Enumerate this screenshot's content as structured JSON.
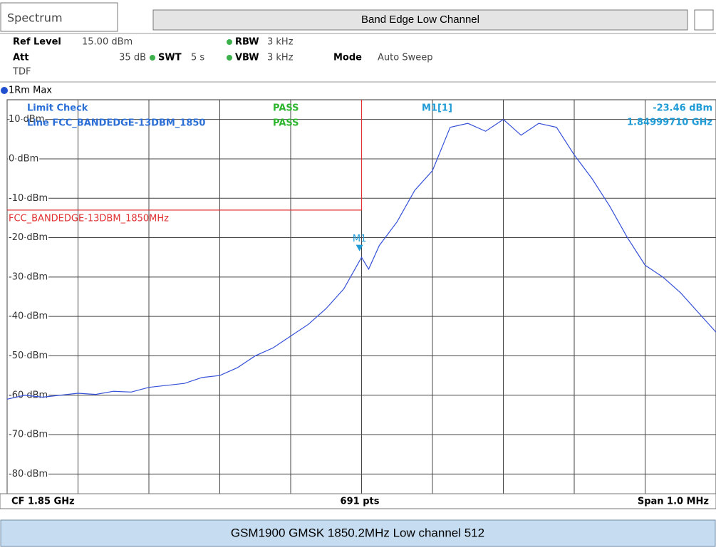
{
  "header": {
    "tab": "Spectrum",
    "title": "Band Edge Low Channel"
  },
  "settings": {
    "ref_level_label": "Ref Level",
    "ref_level": "15.00 dBm",
    "att_label": "Att",
    "att": "35 dB",
    "swt_label": "SWT",
    "swt": "5 s",
    "rbw_label": "RBW",
    "rbw": "3 kHz",
    "vbw_label": "VBW",
    "vbw": "3 kHz",
    "mode_label": "Mode",
    "mode": "Auto Sweep",
    "tdf": "TDF",
    "trace": "1Rm Max"
  },
  "chart_data": {
    "type": "line",
    "xlim": [
      1.8495,
      1.8505
    ],
    "xticks": [
      1.8495,
      1.8496,
      1.8497,
      1.8498,
      1.8499,
      1.85,
      1.8501,
      1.8502,
      1.8503,
      1.8504,
      1.8505
    ],
    "ylim": [
      -85,
      15
    ],
    "yticks": [
      {
        "value": 10,
        "label": "10 dBm"
      },
      {
        "value": 0,
        "label": "0 dBm"
      },
      {
        "value": -10,
        "label": "-10 dBm"
      },
      {
        "value": -20,
        "label": "-20 dBm"
      },
      {
        "value": -30,
        "label": "-30 dBm"
      },
      {
        "value": -40,
        "label": "-40 dBm"
      },
      {
        "value": -50,
        "label": "-50 dBm"
      },
      {
        "value": -60,
        "label": "-60 dBm"
      },
      {
        "value": -70,
        "label": "-70 dBm"
      },
      {
        "value": -80,
        "label": "-80 dBm"
      }
    ],
    "grid": true,
    "series": [
      {
        "name": "1Rm Max",
        "color": "#3550d8",
        "x": [
          1.8495,
          1.849525,
          1.84955,
          1.849575,
          1.8496,
          1.849625,
          1.84965,
          1.849675,
          1.8497,
          1.849725,
          1.84975,
          1.849775,
          1.8498,
          1.849825,
          1.84985,
          1.849875,
          1.8499,
          1.849925,
          1.84995,
          1.849975,
          1.85,
          1.85001,
          1.850025,
          1.85005,
          1.850075,
          1.8501,
          1.850125,
          1.85015,
          1.850175,
          1.8502,
          1.850225,
          1.85025,
          1.850275,
          1.8503,
          1.850325,
          1.85035,
          1.850375,
          1.8504,
          1.850425,
          1.85045,
          1.850475,
          1.8505
        ],
        "values": [
          -61,
          -60,
          -60.5,
          -60,
          -59.5,
          -59.8,
          -59,
          -59.2,
          -58,
          -57.5,
          -57,
          -55.5,
          -55,
          -53,
          -50,
          -48,
          -45,
          -42,
          -38,
          -33,
          -25,
          -28,
          -22,
          -16,
          -8,
          -3,
          8,
          9,
          7,
          10,
          6,
          9,
          8,
          1,
          -5,
          -12,
          -20,
          -27,
          -30,
          -34,
          -39,
          -44
        ]
      }
    ],
    "limit": {
      "label": "FCC_BANDEDGE-13DBM_1850MHz",
      "value": -13,
      "x": 1.85
    },
    "marker": {
      "name": "M1",
      "x": 1.8499971,
      "y": -23.46,
      "readout_name": "M1[1]",
      "y_label": "-23.46 dBm",
      "x_label": "1.84999710 GHz"
    },
    "limit_check": {
      "title": "Limit Check",
      "result": "PASS",
      "line": "Line FCC_BANDEDGE-13DBM_1850",
      "line_result": "PASS"
    }
  },
  "footer": {
    "left": "CF 1.85 GHz",
    "center": "691 pts",
    "right": "Span 1.0 MHz"
  },
  "caption": "GSM1900 GMSK 1850.2MHz Low channel 512"
}
